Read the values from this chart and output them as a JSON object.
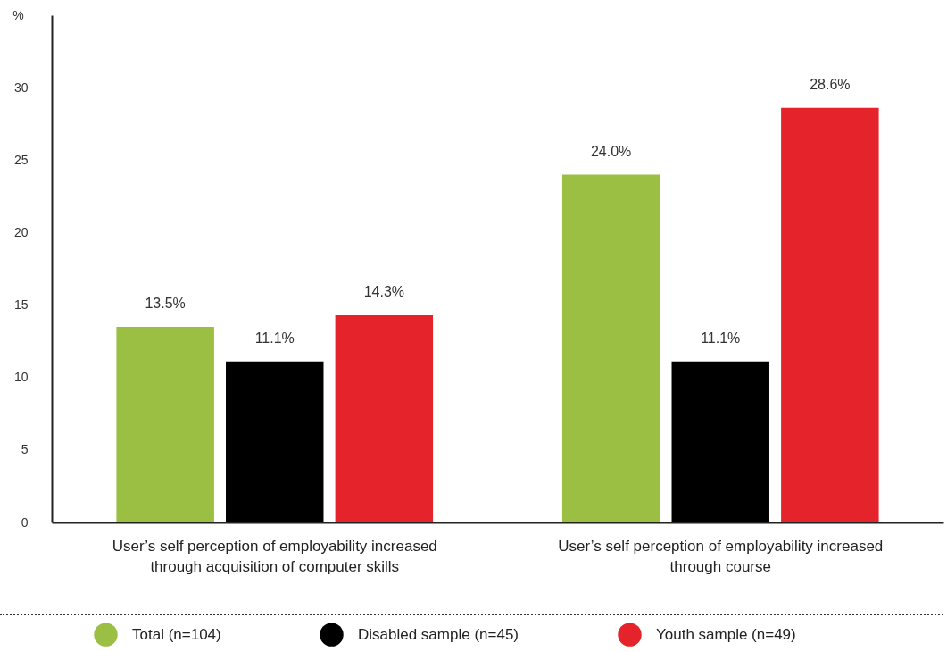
{
  "chart_data": {
    "type": "bar",
    "ylabel": "%",
    "categories": [
      "User’s self perception of employability increased through acquisition of computer skills",
      "User’s self perception of employability increased through course"
    ],
    "series": [
      {
        "name": "Total (n=104)",
        "color": "#9abf43",
        "values": [
          13.5,
          24.0
        ],
        "value_labels": [
          "13.5%",
          "24.0%"
        ]
      },
      {
        "name": "Disabled sample (n=45)",
        "color": "#000000",
        "values": [
          11.1,
          11.1
        ],
        "value_labels": [
          "11.1%",
          "11.1%"
        ]
      },
      {
        "name": "Youth sample (n=49)",
        "color": "#e4232a",
        "values": [
          14.3,
          28.6
        ],
        "value_labels": [
          "14.3%",
          "28.6%"
        ]
      }
    ],
    "ylim": [
      0,
      35
    ],
    "yticks": [
      0,
      5,
      10,
      15,
      20,
      25,
      30
    ],
    "legend": "bottom"
  }
}
